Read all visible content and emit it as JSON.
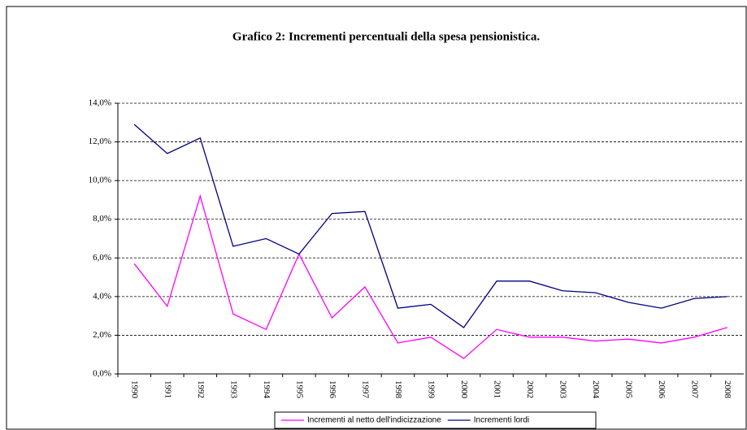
{
  "chart_data": {
    "type": "line",
    "title": "Grafico 2: Incrementi percentuali della spesa pensionistica.",
    "categories": [
      "1990",
      "1991",
      "1992",
      "1993",
      "1994",
      "1995",
      "1996",
      "1997",
      "1998",
      "1999",
      "2000",
      "2001",
      "2002",
      "2003",
      "2004",
      "2005",
      "2006",
      "2007",
      "2008"
    ],
    "series": [
      {
        "name": "Incrementi al netto dell'indicizzazione",
        "color": "#ff00ff",
        "values": [
          5.7,
          3.5,
          9.2,
          3.1,
          2.3,
          6.2,
          2.9,
          4.5,
          1.6,
          1.9,
          0.8,
          2.3,
          1.9,
          1.9,
          1.7,
          1.8,
          1.6,
          1.9,
          2.4
        ]
      },
      {
        "name": "Incrementi lordi",
        "color": "#000080",
        "values": [
          12.9,
          11.4,
          12.2,
          6.6,
          7.0,
          6.2,
          8.3,
          8.4,
          3.4,
          3.6,
          2.4,
          4.8,
          4.8,
          4.3,
          4.2,
          3.7,
          3.4,
          3.9,
          4.0
        ]
      }
    ],
    "ylim": [
      0,
      14
    ],
    "yticks": [
      {
        "value": 0,
        "label": "0,0%"
      },
      {
        "value": 2,
        "label": "2,0%"
      },
      {
        "value": 4,
        "label": "4,0%"
      },
      {
        "value": 6,
        "label": "6,0%"
      },
      {
        "value": 8,
        "label": "8,0%"
      },
      {
        "value": 10,
        "label": "10,0%"
      },
      {
        "value": 12,
        "label": "12,0%"
      },
      {
        "value": 14,
        "label": "14,0%"
      }
    ],
    "grid": true,
    "legend": "bottom"
  }
}
